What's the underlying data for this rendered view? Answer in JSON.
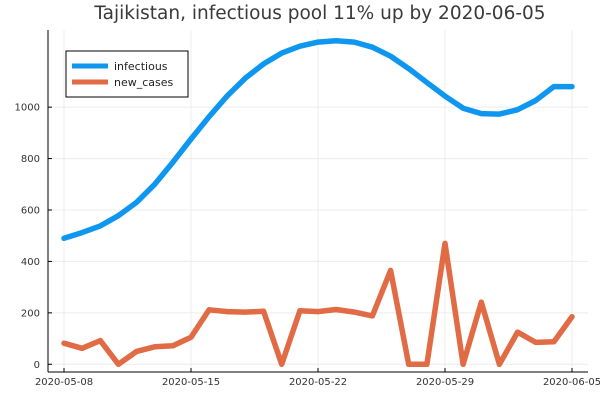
{
  "chart_data": {
    "type": "line",
    "title": "Tajikistan, infectious pool 11% up by 2020-06-05",
    "xlabel": "",
    "ylabel": "",
    "x": [
      "2020-05-08",
      "2020-05-09",
      "2020-05-10",
      "2020-05-11",
      "2020-05-12",
      "2020-05-13",
      "2020-05-14",
      "2020-05-15",
      "2020-05-16",
      "2020-05-17",
      "2020-05-18",
      "2020-05-19",
      "2020-05-20",
      "2020-05-21",
      "2020-05-22",
      "2020-05-23",
      "2020-05-24",
      "2020-05-25",
      "2020-05-26",
      "2020-05-27",
      "2020-05-28",
      "2020-05-29",
      "2020-05-30",
      "2020-05-31",
      "2020-06-01",
      "2020-06-02",
      "2020-06-03",
      "2020-06-04",
      "2020-06-05"
    ],
    "xticks": [
      "2020-05-08",
      "2020-05-15",
      "2020-05-22",
      "2020-05-29",
      "2020-06-05"
    ],
    "yticks": [
      0,
      200,
      400,
      600,
      800,
      1000
    ],
    "ylim": [
      -30,
      1300
    ],
    "grid": true,
    "legend_position": "top-left",
    "series": [
      {
        "name": "infectious",
        "color": "#0f97f0",
        "values": [
          490,
          512,
          538,
          578,
          630,
          700,
          786,
          876,
          963,
          1044,
          1113,
          1168,
          1210,
          1237,
          1253,
          1258,
          1253,
          1233,
          1198,
          1150,
          1096,
          1043,
          996,
          975,
          973,
          990,
          1026,
          1080,
          1080
        ]
      },
      {
        "name": "new_cases",
        "color": "#e16b45",
        "values": [
          82,
          62,
          92,
          0,
          50,
          68,
          72,
          105,
          212,
          205,
          203,
          206,
          0,
          208,
          205,
          213,
          203,
          188,
          365,
          0,
          0,
          470,
          0,
          242,
          0,
          125,
          85,
          88,
          185
        ]
      }
    ]
  }
}
